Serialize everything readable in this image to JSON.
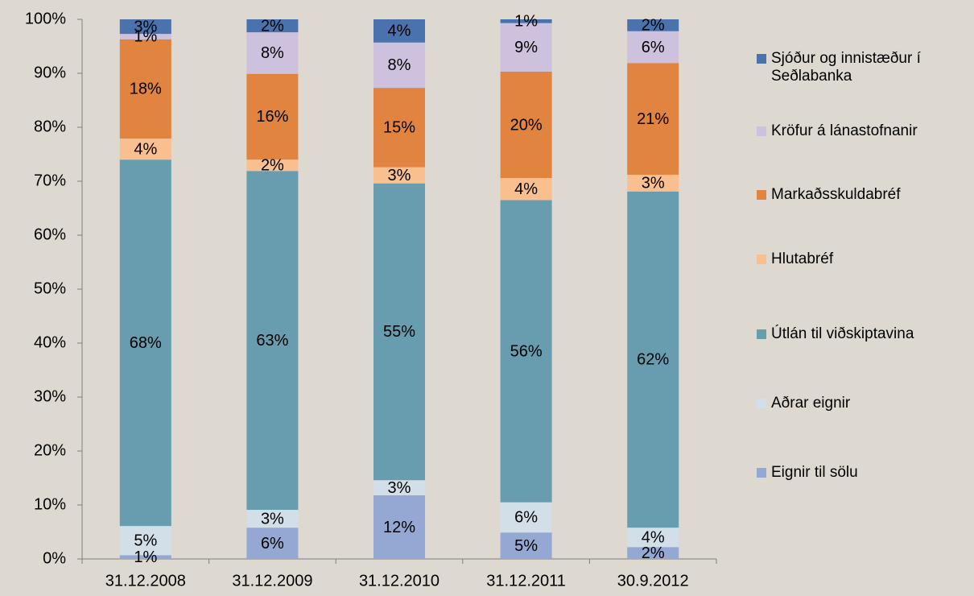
{
  "chart_data": {
    "type": "stacked_bar",
    "categories": [
      "31.12.2008",
      "31.12.2009",
      "31.12.2010",
      "31.12.2011",
      "30.9.2012"
    ],
    "ylim": [
      0,
      100
    ],
    "yticks": [
      {
        "value": 0,
        "label": "0%"
      },
      {
        "value": 10,
        "label": "10%"
      },
      {
        "value": 20,
        "label": "20%"
      },
      {
        "value": 30,
        "label": "30%"
      },
      {
        "value": 40,
        "label": "40%"
      },
      {
        "value": 50,
        "label": "50%"
      },
      {
        "value": 60,
        "label": "60%"
      },
      {
        "value": 70,
        "label": "70%"
      },
      {
        "value": 80,
        "label": "80%"
      },
      {
        "value": 90,
        "label": "90%"
      },
      {
        "value": 100,
        "label": "100%"
      }
    ],
    "legend": "right",
    "series": [
      {
        "name": "Eignir til sölu",
        "color": "#95a7d3",
        "values": [
          0.7,
          5.8,
          11.8,
          4.9,
          2.2
        ],
        "value_labels": [
          "1%",
          "6%",
          "12%",
          "5%",
          "2%"
        ]
      },
      {
        "name": "Aðrar eignir",
        "color": "#d2dfe8",
        "values": [
          5.4,
          3.3,
          2.8,
          5.6,
          3.6
        ],
        "value_labels": [
          "5%",
          "3%",
          "3%",
          "6%",
          "4%"
        ]
      },
      {
        "name": "Útlán til viðskiptavina",
        "color": "#689daf",
        "values": [
          67.9,
          62.8,
          55.0,
          56.0,
          62.3
        ],
        "value_labels": [
          "68%",
          "63%",
          "55%",
          "56%",
          "62%"
        ]
      },
      {
        "name": "Hlutabréf",
        "color": "#f9bf8f",
        "values": [
          3.9,
          2.1,
          3.0,
          4.1,
          3.1
        ],
        "value_labels": [
          "4%",
          "2%",
          "3%",
          "4%",
          "3%"
        ]
      },
      {
        "name": "Markaðsskuldabréf",
        "color": "#e0843f",
        "values": [
          18.4,
          15.9,
          14.7,
          19.7,
          20.7
        ],
        "value_labels": [
          "18%",
          "16%",
          "15%",
          "20%",
          "21%"
        ]
      },
      {
        "name": "Kröfur á lánastofnanir",
        "color": "#cdc1de",
        "values": [
          1.0,
          7.7,
          8.4,
          9.0,
          5.9
        ],
        "value_labels": [
          "1%",
          "8%",
          "8%",
          "9%",
          "6%"
        ]
      },
      {
        "name": "Sjóður og innistæður í Seðlabanka",
        "color": "#4a73ad",
        "values": [
          2.7,
          2.4,
          4.3,
          0.7,
          2.2
        ],
        "value_labels": [
          "3%",
          "2%",
          "4%",
          "1%",
          "2%"
        ]
      }
    ]
  }
}
